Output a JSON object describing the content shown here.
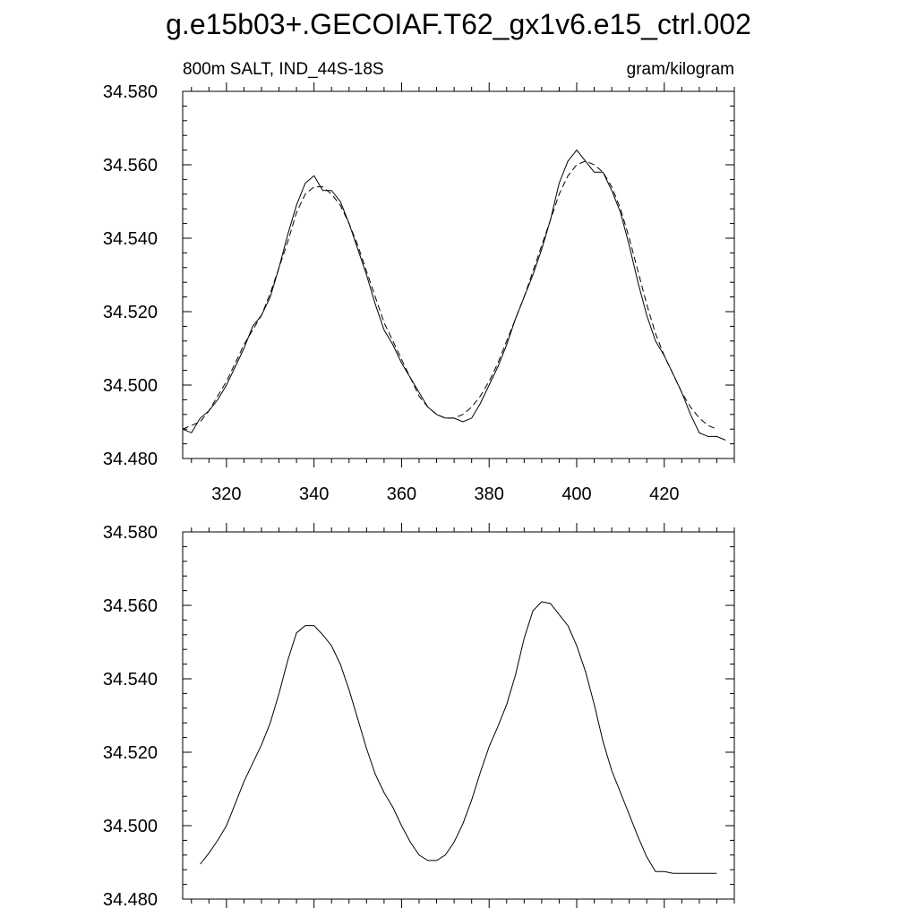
{
  "figure": {
    "title": "g.e15b03+.GECOIAF.T62_gx1v6.e15_ctrl.002",
    "left_label": "800m SALT, IND_44S-18S",
    "right_label": "gram/kilogram"
  },
  "chart_data": [
    {
      "type": "line",
      "xlim": [
        310,
        436
      ],
      "ylim": [
        34.48,
        34.58
      ],
      "y_ticks": [
        "34.480",
        "34.500",
        "34.520",
        "34.540",
        "34.560",
        "34.580"
      ],
      "x_ticks": [
        "320",
        "340",
        "360",
        "380",
        "400",
        "420"
      ],
      "grid": false,
      "series": [
        {
          "style": "solid",
          "x": [
            310,
            312,
            314,
            316,
            318,
            320,
            322,
            324,
            326,
            328,
            330,
            332,
            334,
            336,
            338,
            340,
            342,
            344,
            346,
            348,
            350,
            352,
            354,
            356,
            358,
            360,
            362,
            364,
            366,
            368,
            370,
            372,
            374,
            376,
            378,
            380,
            382,
            384,
            386,
            388,
            390,
            392,
            394,
            396,
            398,
            400,
            402,
            404,
            406,
            408,
            410,
            412,
            414,
            416,
            418,
            420,
            422,
            424,
            426,
            428,
            430,
            432,
            434
          ],
          "y": [
            34.488,
            34.487,
            34.491,
            34.493,
            34.496,
            34.5,
            34.505,
            34.51,
            34.516,
            34.519,
            34.524,
            34.532,
            34.541,
            34.549,
            34.555,
            34.557,
            34.553,
            34.553,
            34.55,
            34.544,
            34.537,
            34.53,
            34.522,
            34.515,
            34.511,
            34.506,
            34.502,
            34.498,
            34.494,
            34.492,
            34.491,
            34.491,
            34.49,
            34.491,
            34.495,
            34.5,
            34.505,
            34.511,
            34.518,
            34.524,
            34.53,
            34.537,
            34.545,
            34.555,
            34.561,
            34.564,
            34.561,
            34.558,
            34.558,
            34.553,
            34.547,
            34.538,
            34.528,
            34.519,
            34.512,
            34.508,
            34.503,
            34.498,
            34.492,
            34.487,
            34.486,
            34.486,
            34.485
          ]
        },
        {
          "style": "dashed",
          "x": [
            310,
            312,
            314,
            316,
            318,
            320,
            322,
            324,
            326,
            328,
            330,
            332,
            334,
            336,
            338,
            340,
            342,
            344,
            346,
            348,
            350,
            352,
            354,
            356,
            358,
            360,
            362,
            364,
            366,
            368,
            370,
            372,
            374,
            376,
            378,
            380,
            382,
            384,
            386,
            388,
            390,
            392,
            394,
            396,
            398,
            400,
            402,
            404,
            406,
            408,
            410,
            412,
            414,
            416,
            418,
            420,
            422,
            424,
            426,
            428,
            430,
            432
          ],
          "y": [
            34.488,
            34.489,
            34.49,
            34.493,
            34.497,
            34.501,
            34.506,
            34.511,
            34.515,
            34.519,
            34.525,
            34.532,
            34.539,
            34.547,
            34.552,
            34.554,
            34.554,
            34.552,
            34.549,
            34.544,
            34.538,
            34.531,
            34.524,
            34.517,
            34.512,
            34.507,
            34.502,
            34.497,
            34.494,
            34.492,
            34.491,
            34.491,
            34.492,
            34.494,
            34.497,
            34.501,
            34.506,
            34.512,
            34.518,
            34.524,
            34.531,
            34.538,
            34.545,
            34.552,
            34.557,
            34.56,
            34.561,
            34.56,
            34.558,
            34.554,
            34.548,
            34.54,
            34.531,
            34.522,
            34.514,
            34.508,
            34.503,
            34.498,
            34.494,
            34.491,
            34.489,
            34.488
          ]
        }
      ]
    },
    {
      "type": "line",
      "xlim": [
        310,
        436
      ],
      "ylim": [
        34.48,
        34.58
      ],
      "y_ticks": [
        "34.480",
        "34.500",
        "34.520",
        "34.540",
        "34.560",
        "34.580"
      ],
      "x_ticks": [
        "320",
        "340",
        "360",
        "380",
        "400",
        "420"
      ],
      "grid": false,
      "series": [
        {
          "style": "solid",
          "x": [
            314,
            316,
            318,
            320,
            322,
            324,
            326,
            328,
            330,
            332,
            334,
            336,
            338,
            340,
            342,
            344,
            346,
            348,
            350,
            352,
            354,
            356,
            358,
            360,
            362,
            364,
            366,
            368,
            370,
            372,
            374,
            376,
            378,
            380,
            382,
            384,
            386,
            388,
            390,
            392,
            394,
            396,
            398,
            400,
            402,
            404,
            406,
            408,
            410,
            412,
            414,
            416,
            418,
            420,
            422,
            424,
            426,
            428,
            430,
            432
          ],
          "y": [
            34.4895,
            34.4925,
            34.496,
            34.5,
            34.506,
            34.512,
            34.517,
            34.522,
            34.528,
            34.536,
            34.545,
            34.5525,
            34.5545,
            34.5545,
            34.552,
            34.549,
            34.544,
            34.537,
            34.529,
            34.521,
            34.514,
            34.509,
            34.505,
            34.5,
            34.4955,
            34.492,
            34.4905,
            34.4905,
            34.492,
            34.4955,
            34.5005,
            34.507,
            34.5145,
            34.5215,
            34.527,
            34.533,
            34.541,
            34.551,
            34.5585,
            34.561,
            34.5605,
            34.5575,
            34.5545,
            34.549,
            34.542,
            34.533,
            34.523,
            34.515,
            34.509,
            34.503,
            34.497,
            34.4915,
            34.4875,
            34.4875,
            34.487,
            34.487,
            34.487,
            34.487,
            34.487,
            34.487
          ]
        }
      ]
    }
  ]
}
